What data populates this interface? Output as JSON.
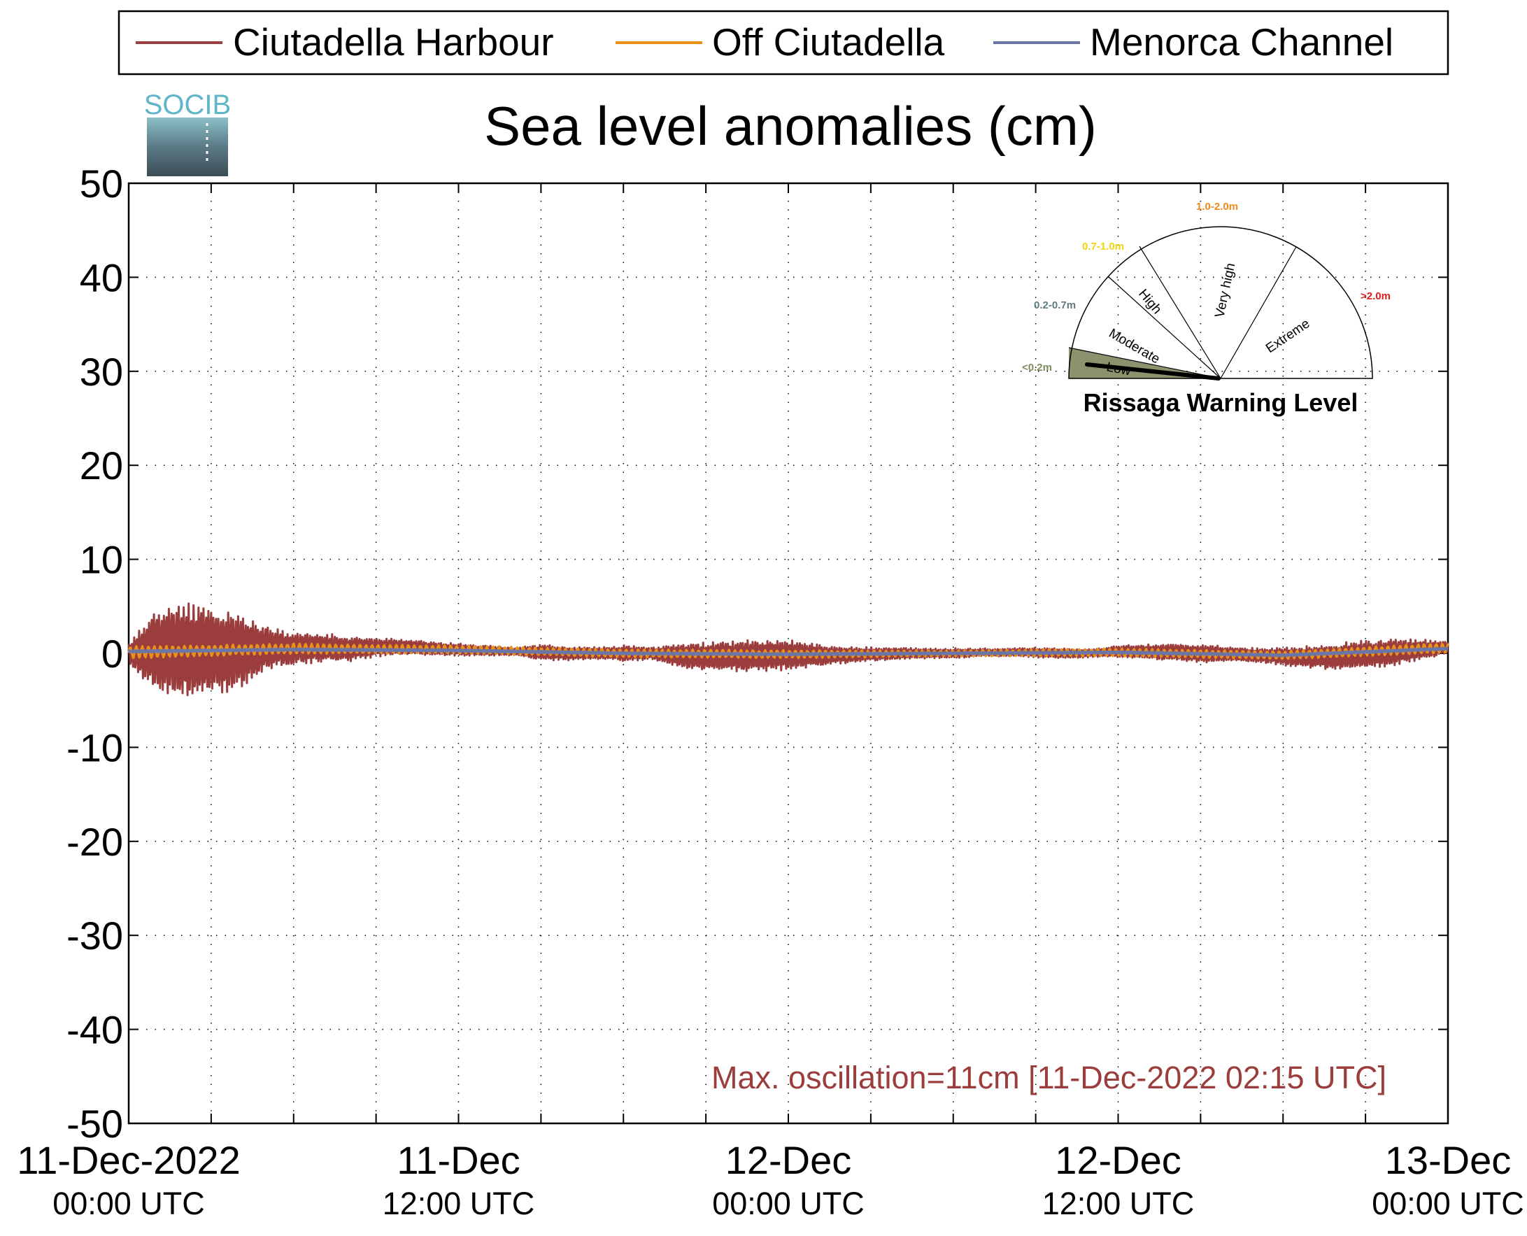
{
  "chart_data": {
    "type": "line",
    "title": "Sea level anomalies (cm)",
    "xlabel": "",
    "ylabel": "",
    "ylim": [
      -50,
      50
    ],
    "yticks": [
      50,
      40,
      30,
      20,
      10,
      0,
      -10,
      -20,
      -30,
      -40,
      -50
    ],
    "yticklabels": [
      "50",
      "40",
      "30",
      "20",
      "10",
      "0",
      "-10",
      "-20",
      "-30",
      "-40",
      "-50"
    ],
    "xlim_hours": [
      0,
      48
    ],
    "xticks_hours": [
      0,
      3,
      6,
      9,
      12,
      15,
      18,
      21,
      24,
      27,
      30,
      33,
      36,
      39,
      42,
      45,
      48
    ],
    "xticklabels": [
      {
        "hour": 0,
        "line1": "11-Dec-2022",
        "line2": "00:00 UTC"
      },
      {
        "hour": 12,
        "line1": "11-Dec",
        "line2": "12:00 UTC"
      },
      {
        "hour": 24,
        "line1": "12-Dec",
        "line2": "00:00 UTC"
      },
      {
        "hour": 36,
        "line1": "12-Dec",
        "line2": "12:00 UTC"
      },
      {
        "hour": 48,
        "line1": "13-Dec",
        "line2": "00:00 UTC"
      }
    ],
    "grid": true,
    "legend_position": "top",
    "series": [
      {
        "name": "Ciutadella Harbour",
        "color": "#9b3d3d",
        "envelope_hours": [
          0,
          1,
          2,
          3,
          4,
          5,
          6,
          7,
          8,
          9,
          10,
          11,
          12,
          13,
          14,
          15,
          16,
          17,
          18,
          19,
          20,
          21,
          22,
          23,
          24,
          25,
          26,
          27,
          28,
          29,
          30,
          31,
          32,
          33,
          34,
          35,
          36,
          37,
          38,
          39,
          40,
          41,
          42,
          43,
          44,
          45,
          46,
          47,
          48
        ],
        "envelope_amplitude_cm": [
          1.0,
          4.2,
          4.8,
          4.5,
          3.8,
          2.2,
          1.6,
          1.5,
          1.3,
          0.9,
          0.8,
          0.7,
          0.6,
          0.5,
          0.4,
          0.8,
          0.7,
          0.6,
          0.8,
          0.6,
          1.2,
          1.4,
          1.5,
          1.6,
          1.5,
          1.2,
          0.8,
          0.7,
          0.6,
          0.5,
          0.5,
          0.4,
          0.4,
          0.5,
          0.5,
          0.4,
          0.6,
          0.7,
          0.9,
          0.9,
          0.8,
          0.7,
          0.9,
          1.1,
          1.3,
          1.4,
          1.3,
          1.0,
          0.6
        ],
        "baseline_cm": [
          0.0,
          0.3,
          0.4,
          0.3,
          0.3,
          0.5,
          0.5,
          0.6,
          0.5,
          0.6,
          0.7,
          0.5,
          0.4,
          0.3,
          0.2,
          0.1,
          0.0,
          0.0,
          0.0,
          0.0,
          -0.2,
          -0.3,
          -0.3,
          -0.2,
          -0.2,
          -0.2,
          -0.2,
          -0.1,
          0.0,
          0.0,
          0.0,
          0.1,
          0.1,
          0.1,
          0.0,
          0.0,
          0.2,
          0.2,
          0.1,
          0.0,
          -0.1,
          -0.2,
          -0.3,
          -0.4,
          -0.3,
          -0.1,
          0.1,
          0.4,
          0.6
        ]
      },
      {
        "name": "Off Ciutadella",
        "color": "#e8921c",
        "envelope_hours": [
          0,
          6,
          12,
          18,
          24,
          30,
          36,
          42,
          48
        ],
        "envelope_amplitude_cm": [
          0.6,
          0.5,
          0.4,
          0.4,
          0.4,
          0.3,
          0.4,
          0.4,
          0.5
        ],
        "baseline_cm": [
          0.1,
          0.5,
          0.4,
          0.0,
          -0.1,
          0.0,
          0.1,
          -0.2,
          0.6
        ]
      },
      {
        "name": "Menorca Channel",
        "color": "#6b76a8",
        "envelope_hours": [
          0,
          6,
          12,
          18,
          24,
          30,
          36,
          42,
          48
        ],
        "envelope_amplitude_cm": [
          0.1,
          0.1,
          0.1,
          0.1,
          0.1,
          0.1,
          0.1,
          0.1,
          0.1
        ],
        "baseline_cm": [
          0.2,
          0.4,
          0.3,
          0.0,
          -0.1,
          0.0,
          0.1,
          -0.2,
          0.5
        ]
      }
    ],
    "annotation": "Max. oscillation=11cm [11-Dec-2022 02:15 UTC]",
    "annotation_color": "#9b3d3d"
  },
  "logo": {
    "text": "SOCIB"
  },
  "gauge": {
    "title": "Rissaga Warning Level",
    "current_level": "Low",
    "sectors": [
      {
        "name": "Low",
        "range": "<0.2m",
        "range_color": "#7d8c5a",
        "fill": "#8a936e"
      },
      {
        "name": "Moderate",
        "range": "0.2-0.7m",
        "range_color": "#5f7a7e",
        "fill": "#ffffff"
      },
      {
        "name": "High",
        "range": "0.7-1.0m",
        "range_color": "#f2d20f",
        "fill": "#ffffff"
      },
      {
        "name": "Very high",
        "range": "1.0-2.0m",
        "range_color": "#f08a1c",
        "fill": "#ffffff"
      },
      {
        "name": "Extreme",
        "range": ">2.0m",
        "range_color": "#e01b1b",
        "fill": "#ffffff"
      }
    ]
  }
}
